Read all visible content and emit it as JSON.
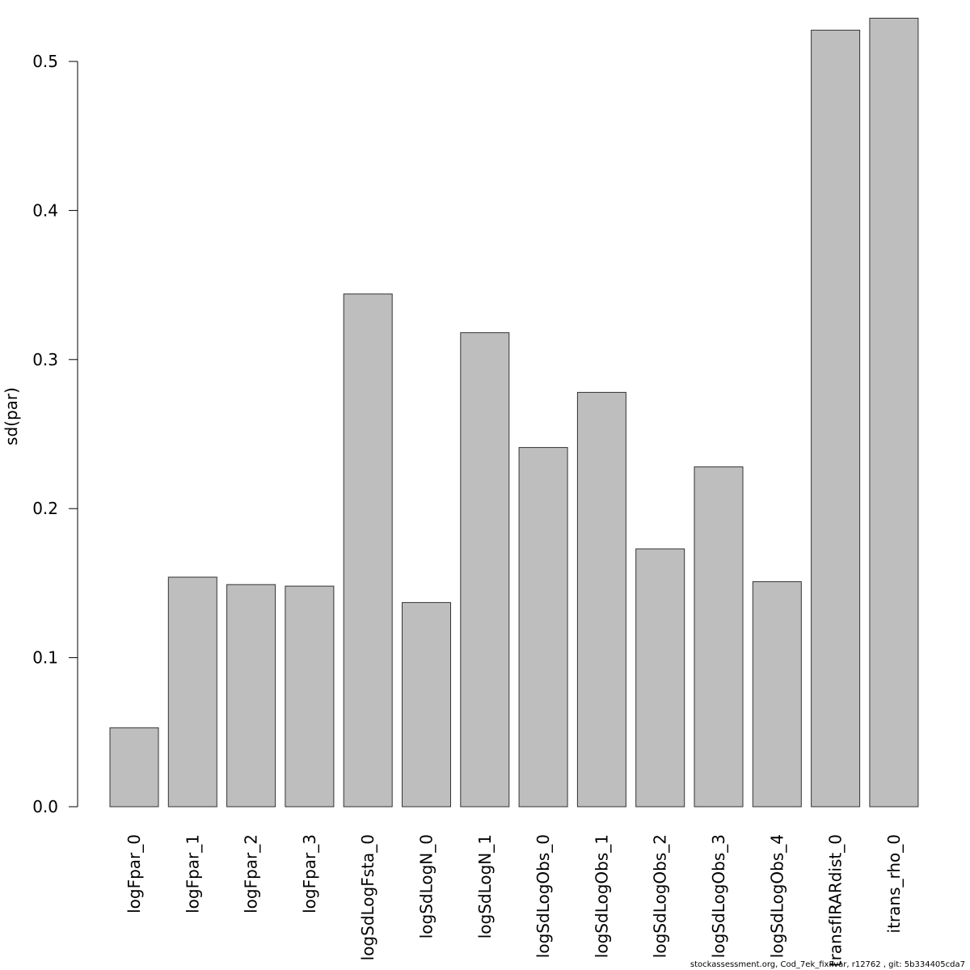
{
  "chart_data": {
    "type": "bar",
    "title": "",
    "xlabel": "",
    "ylabel": "sd(par)",
    "ylim": [
      0,
      0.53
    ],
    "yticks": [
      0.0,
      0.1,
      0.2,
      0.3,
      0.4,
      0.5
    ],
    "ytick_labels": [
      "0.0",
      "0.1",
      "0.2",
      "0.3",
      "0.4",
      "0.5"
    ],
    "grid": false,
    "legend": "none",
    "bar_color": "#bebebe",
    "categories": [
      "logFpar_0",
      "logFpar_1",
      "logFpar_2",
      "logFpar_3",
      "logSdLogFsta_0",
      "logSdLogN_0",
      "logSdLogN_1",
      "logSdLogObs_0",
      "logSdLogObs_1",
      "logSdLogObs_2",
      "logSdLogObs_3",
      "logSdLogObs_4",
      "transfIRARdist_0",
      "itrans_rho_0"
    ],
    "values": [
      0.053,
      0.154,
      0.149,
      0.148,
      0.344,
      0.137,
      0.318,
      0.241,
      0.278,
      0.173,
      0.228,
      0.151,
      0.521,
      0.529
    ]
  },
  "footnote": "stockassessment.org, Cod_7ek_fixFvar, r12762 , git: 5b334405cda7"
}
